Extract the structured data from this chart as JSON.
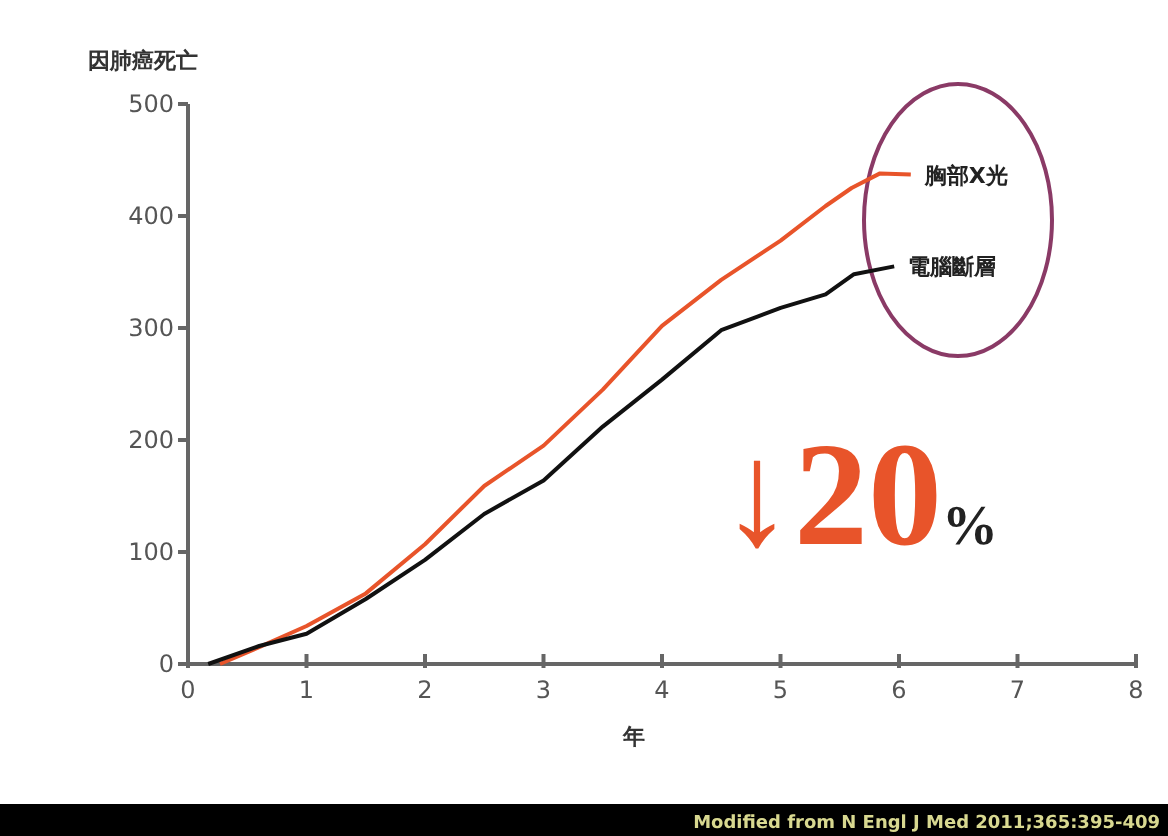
{
  "chart_data": {
    "type": "line",
    "ylabel": "因肺癌死亡",
    "xlabel": "年",
    "xlim": [
      0,
      8
    ],
    "xticks": [
      0,
      1,
      2,
      3,
      4,
      5,
      6,
      7,
      8
    ],
    "ylim": [
      0,
      500
    ],
    "yticks": [
      0,
      100,
      200,
      300,
      400,
      500
    ],
    "series": [
      {
        "name": "胸部X光",
        "color": "#e8542a",
        "x": [
          0.27,
          0.6,
          1,
          1.5,
          2,
          2.5,
          3,
          3.5,
          4,
          4.5,
          5,
          5.38,
          5.6,
          5.84,
          6.1
        ],
        "values": [
          0,
          15,
          34,
          63,
          107,
          159,
          195,
          245,
          302,
          343,
          378,
          409,
          425,
          438,
          437
        ]
      },
      {
        "name": "電腦斷層",
        "color": "#111111",
        "x": [
          0.17,
          0.6,
          1,
          1.5,
          2,
          2.5,
          3,
          3.5,
          4,
          4.5,
          4.8,
          5,
          5.38,
          5.62,
          5.96
        ],
        "values": [
          0,
          16,
          27,
          58,
          93,
          134,
          164,
          212,
          254,
          298,
          310,
          318,
          330,
          348,
          355
        ]
      }
    ],
    "annotations": [
      "↓20%",
      "Modified from N Engl J Med 2011;365:395-409"
    ]
  }
}
